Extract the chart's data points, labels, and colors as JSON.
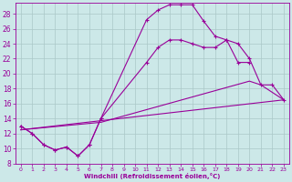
{
  "xlabel": "Windchill (Refroidissement éolien,°C)",
  "bg_color": "#cce8e8",
  "line_color": "#990099",
  "xlim": [
    -0.5,
    23.5
  ],
  "ylim": [
    8,
    29.5
  ],
  "xticks": [
    0,
    1,
    2,
    3,
    4,
    5,
    6,
    7,
    8,
    9,
    10,
    11,
    12,
    13,
    14,
    15,
    16,
    17,
    18,
    19,
    20,
    21,
    22,
    23
  ],
  "yticks": [
    8,
    10,
    12,
    14,
    16,
    18,
    20,
    22,
    24,
    26,
    28
  ],
  "grid_color": "#aac8c8",
  "line1_x": [
    0,
    1,
    2,
    3,
    4,
    5,
    6,
    7,
    11,
    12,
    13,
    14,
    15,
    16,
    17,
    18,
    19,
    20
  ],
  "line1_y": [
    13,
    12,
    10.5,
    9.8,
    10.2,
    9.0,
    10.5,
    14.0,
    27.2,
    28.5,
    29.2,
    29.2,
    29.2,
    27.0,
    25.0,
    24.5,
    21.5,
    21.5
  ],
  "line2_x": [
    0,
    1,
    2,
    3,
    4,
    5,
    6,
    7,
    11,
    12,
    13,
    14,
    15,
    16,
    17,
    18,
    19,
    20,
    21,
    22,
    23
  ],
  "line2_y": [
    13,
    12,
    10.5,
    9.8,
    10.2,
    9.0,
    10.5,
    14.0,
    21.5,
    23.5,
    24.5,
    24.5,
    24.0,
    23.5,
    23.5,
    24.5,
    24.0,
    22.0,
    18.5,
    18.5,
    16.5
  ],
  "line3_x": [
    0,
    23
  ],
  "line3_y": [
    12.5,
    16.5
  ],
  "line4_x": [
    0,
    7,
    20,
    21,
    22,
    23
  ],
  "line4_y": [
    12.5,
    13.5,
    19.0,
    18.5,
    17.5,
    16.5
  ]
}
